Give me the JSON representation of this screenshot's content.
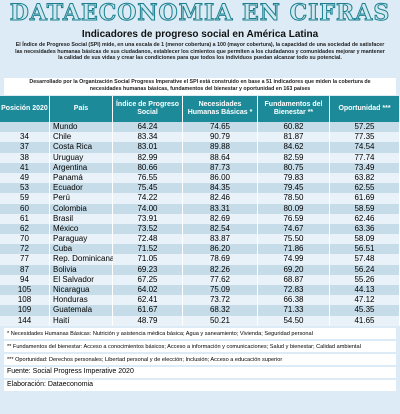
{
  "header": {
    "title": "DATAECONOMIA EN CIFRAS",
    "subtitle": "Indicadores de progreso social en América Latina"
  },
  "intro": "El Índice de Progreso Social (SPI) mide, en una escala de 1 (menor cobertura) a 100 (mayor cobertura), la capacidad de una sociedad de satisfacer las necesidades humanas básicas de sus ciudadanos, establecer los cimientos que permiten a los ciudadanos y comunidades mejorar y mantener la calidad de sus vidas y crear las condiciones para que todos los individuos puedan alcanzar todo su potencial.",
  "note": "Desarrollado por la Organización Social Progress Imperative el SPI está construido en base a 51 indicadores que miden la cobertura de necesidades humanas básicas, fundamentos del bienestar y oportunidad en 163 países",
  "table": {
    "columns": [
      "Posición 2020",
      "País",
      "Índice de Progreso Social",
      "Necesidades Humanas Básicas *",
      "Fundamentos del Bienestar **",
      "Oportunidad ***"
    ],
    "rows": [
      [
        null,
        "Mundo",
        "64.24",
        "74.65",
        "60.82",
        "57.25"
      ],
      [
        "34",
        "Chile",
        "83.34",
        "90.79",
        "81.87",
        "77.35"
      ],
      [
        "37",
        "Costa Rica",
        "83.01",
        "89.88",
        "84.62",
        "74.54"
      ],
      [
        "38",
        "Uruguay",
        "82.99",
        "88.64",
        "82.59",
        "77.74"
      ],
      [
        "41",
        "Argentina",
        "80.66",
        "87.73",
        "80.75",
        "73.49"
      ],
      [
        "49",
        "Panamá",
        "76.55",
        "86.00",
        "79.83",
        "63.82"
      ],
      [
        "53",
        "Ecuador",
        "75.45",
        "84.35",
        "79.45",
        "62.55"
      ],
      [
        "59",
        "Perú",
        "74.22",
        "82.46",
        "78.50",
        "61.69"
      ],
      [
        "60",
        "Colombia",
        "74.00",
        "83.31",
        "80.09",
        "58.59"
      ],
      [
        "61",
        "Brasil",
        "73.91",
        "82.69",
        "76.59",
        "62.46"
      ],
      [
        "62",
        "México",
        "73.52",
        "82.54",
        "74.67",
        "63.36"
      ],
      [
        "70",
        "Paraguay",
        "72.48",
        "83.87",
        "75.50",
        "58.09"
      ],
      [
        "72",
        "Cuba",
        "71.52",
        "86.20",
        "71.86",
        "56.51"
      ],
      [
        "77",
        "Rep. Dominicana",
        "71.05",
        "78.69",
        "74.99",
        "57.48"
      ],
      [
        "87",
        "Bolivia",
        "69.23",
        "82.26",
        "69.20",
        "56.24"
      ],
      [
        "94",
        "El Salvador",
        "67.25",
        "77.62",
        "68.87",
        "55.26"
      ],
      [
        "105",
        "Nicaragua",
        "64.02",
        "75.09",
        "72.83",
        "44.13"
      ],
      [
        "108",
        "Honduras",
        "62.41",
        "73.72",
        "66.38",
        "47.12"
      ],
      [
        "109",
        "Guatemala",
        "61.67",
        "68.32",
        "71.33",
        "45.35"
      ],
      [
        "144",
        "Haití",
        "48.79",
        "50.21",
        "54.50",
        "41.65"
      ]
    ]
  },
  "footnotes": [
    "* Necesidades Humanas Básicas: Nutrición y asistencia médica básica; Agua y saneamiento; Vivienda; Seguridad personal",
    "** Fundamentos del bienestar: Acceso a conocimientos básicos; Acceso a información y comunicaciones; Salud y bienestar; Calidad ambiental",
    "*** Oportunidad: Derechos personales; Libertad personal y de elección; Inclusión; Acceso a educación superior"
  ],
  "source": "Fuente: Social Progress Imperative 2020",
  "credit": "Elaboración: Dataeconomia"
}
